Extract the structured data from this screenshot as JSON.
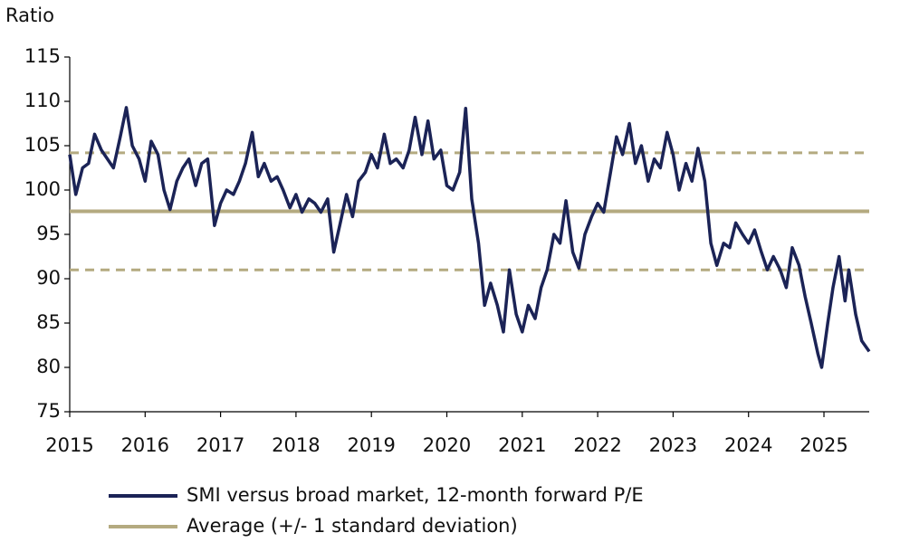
{
  "chart_data": {
    "type": "line",
    "y_label": "Ratio",
    "xlim": [
      2015,
      2025.6
    ],
    "xticks": [
      2015,
      2016,
      2017,
      2018,
      2019,
      2020,
      2021,
      2022,
      2023,
      2024,
      2025
    ],
    "ylim": [
      75,
      115
    ],
    "yticks": [
      75,
      80,
      85,
      90,
      95,
      100,
      105,
      110,
      115
    ],
    "grid": false,
    "legend": "bottom",
    "x": [
      2015.0,
      2015.08,
      2015.17,
      2015.25,
      2015.33,
      2015.42,
      2015.5,
      2015.58,
      2015.67,
      2015.75,
      2015.83,
      2015.92,
      2016.0,
      2016.08,
      2016.17,
      2016.25,
      2016.33,
      2016.42,
      2016.5,
      2016.58,
      2016.67,
      2016.75,
      2016.83,
      2016.92,
      2017.0,
      2017.08,
      2017.17,
      2017.25,
      2017.33,
      2017.42,
      2017.5,
      2017.58,
      2017.67,
      2017.75,
      2017.83,
      2017.92,
      2018.0,
      2018.08,
      2018.17,
      2018.25,
      2018.33,
      2018.42,
      2018.5,
      2018.58,
      2018.67,
      2018.75,
      2018.83,
      2018.92,
      2019.0,
      2019.08,
      2019.17,
      2019.25,
      2019.33,
      2019.42,
      2019.5,
      2019.58,
      2019.67,
      2019.75,
      2019.83,
      2019.92,
      2020.0,
      2020.08,
      2020.17,
      2020.25,
      2020.33,
      2020.42,
      2020.5,
      2020.58,
      2020.67,
      2020.75,
      2020.83,
      2020.92,
      2021.0,
      2021.08,
      2021.17,
      2021.25,
      2021.33,
      2021.42,
      2021.5,
      2021.58,
      2021.67,
      2021.75,
      2021.83,
      2021.92,
      2022.0,
      2022.08,
      2022.17,
      2022.25,
      2022.33,
      2022.42,
      2022.5,
      2022.58,
      2022.67,
      2022.75,
      2022.83,
      2022.92,
      2023.0,
      2023.08,
      2023.17,
      2023.25,
      2023.33,
      2023.42,
      2023.5,
      2023.58,
      2023.67,
      2023.75,
      2023.83,
      2023.92,
      2024.0,
      2024.08,
      2024.17,
      2024.25,
      2024.33,
      2024.42,
      2024.5,
      2024.58,
      2024.67,
      2024.75,
      2024.83,
      2024.92,
      2024.97,
      2025.05,
      2025.12,
      2025.2,
      2025.28,
      2025.33,
      2025.42,
      2025.5,
      2025.6
    ],
    "series": [
      {
        "name": "SMI versus broad market, 12-month forward P/E",
        "color": "#1b2356",
        "values": [
          104,
          99.5,
          102.5,
          103,
          106.3,
          104.5,
          103.5,
          102.5,
          106,
          109.3,
          105,
          103.5,
          101,
          105.5,
          104,
          100,
          97.8,
          101,
          102.5,
          103.5,
          100.5,
          103,
          103.5,
          96,
          98.5,
          100,
          99.5,
          101,
          103,
          106.5,
          101.5,
          103,
          101,
          101.5,
          100,
          98,
          99.5,
          97.5,
          99,
          98.5,
          97.5,
          99,
          93,
          96,
          99.5,
          97,
          101,
          102,
          104,
          102.5,
          106.3,
          103,
          103.5,
          102.5,
          104.5,
          108.2,
          104,
          107.8,
          103.5,
          104.5,
          100.5,
          100,
          102,
          109.2,
          99,
          94,
          87,
          89.5,
          87,
          84,
          91,
          86,
          84,
          87,
          85.5,
          89,
          91,
          95,
          94,
          98.8,
          93,
          91.2,
          95,
          97,
          98.5,
          97.5,
          102,
          106,
          104,
          107.5,
          103,
          105,
          101,
          103.5,
          102.5,
          106.5,
          104,
          100,
          103,
          101,
          104.7,
          101,
          94,
          91.5,
          94,
          93.5,
          96.3,
          95,
          94,
          95.5,
          93,
          91,
          92.5,
          91,
          89,
          93.5,
          91.5,
          88,
          85,
          81.5,
          80,
          85,
          89,
          92.5,
          87.5,
          91,
          86,
          83,
          81.8
        ]
      }
    ],
    "average": {
      "name": "Average (+/- 1 standard deviation)",
      "color": "#b4aa80",
      "mean": 97.6,
      "upper": 104.2,
      "lower": 91.0
    }
  }
}
